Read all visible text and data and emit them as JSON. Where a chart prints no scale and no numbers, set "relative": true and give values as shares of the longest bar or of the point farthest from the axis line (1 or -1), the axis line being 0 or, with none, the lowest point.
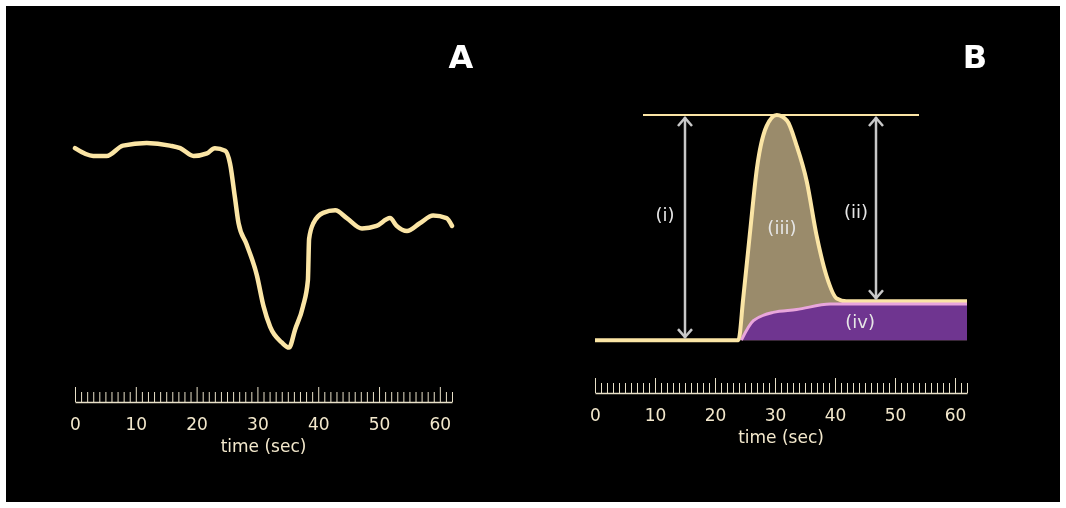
{
  "chart_data": [
    {
      "type": "line",
      "title": "A",
      "xlabel": "time (sec)",
      "relative": true,
      "xlim": [
        0,
        62
      ],
      "xticks": [
        0,
        {
          "value": 1,
          "label": null
        },
        {
          "value": 2,
          "label": null
        },
        {
          "value": 3,
          "label": null
        },
        {
          "value": 4,
          "label": null
        },
        {
          "value": 5,
          "label": null
        },
        {
          "value": 6,
          "label": null
        },
        {
          "value": 7,
          "label": null
        },
        {
          "value": 8,
          "label": null
        },
        {
          "value": 9,
          "label": null
        },
        10,
        {
          "value": 11,
          "label": null
        },
        {
          "value": 12,
          "label": null
        },
        {
          "value": 13,
          "label": null
        },
        {
          "value": 14,
          "label": null
        },
        {
          "value": 15,
          "label": null
        },
        {
          "value": 16,
          "label": null
        },
        {
          "value": 17,
          "label": null
        },
        {
          "value": 18,
          "label": null
        },
        {
          "value": 19,
          "label": null
        },
        20,
        {
          "value": 21,
          "label": null
        },
        {
          "value": 22,
          "label": null
        },
        {
          "value": 23,
          "label": null
        },
        {
          "value": 24,
          "label": null
        },
        {
          "value": 25,
          "label": null
        },
        {
          "value": 26,
          "label": null
        },
        {
          "value": 27,
          "label": null
        },
        {
          "value": 28,
          "label": null
        },
        {
          "value": 29,
          "label": null
        },
        30,
        {
          "value": 31,
          "label": null
        },
        {
          "value": 32,
          "label": null
        },
        {
          "value": 33,
          "label": null
        },
        {
          "value": 34,
          "label": null
        },
        {
          "value": 35,
          "label": null
        },
        {
          "value": 36,
          "label": null
        },
        {
          "value": 37,
          "label": null
        },
        {
          "value": 38,
          "label": null
        },
        {
          "value": 39,
          "label": null
        },
        40,
        {
          "value": 41,
          "label": null
        },
        {
          "value": 42,
          "label": null
        },
        {
          "value": 43,
          "label": null
        },
        {
          "value": 44,
          "label": null
        },
        {
          "value": 45,
          "label": null
        },
        {
          "value": 46,
          "label": null
        },
        {
          "value": 47,
          "label": null
        },
        {
          "value": 48,
          "label": null
        },
        {
          "value": 49,
          "label": null
        },
        50,
        {
          "value": 51,
          "label": null
        },
        {
          "value": 52,
          "label": null
        },
        {
          "value": 53,
          "label": null
        },
        {
          "value": 54,
          "label": null
        },
        {
          "value": 55,
          "label": null
        },
        {
          "value": 56,
          "label": null
        },
        {
          "value": 57,
          "label": null
        },
        {
          "value": 58,
          "label": null
        },
        {
          "value": 59,
          "label": null
        },
        60,
        {
          "value": 61,
          "label": null
        },
        {
          "value": 62,
          "label": null
        }
      ],
      "series": [
        {
          "color": "#fbe5a5",
          "x": [
            0,
            3.0,
            5.2,
            7.9,
            11.8,
            15.6,
            17.3,
            19.5,
            21.7,
            23.0,
            24.7,
            25.5,
            26.3,
            26.9,
            28.2,
            29.9,
            31.0,
            32.1,
            34.0,
            35.2,
            36.2,
            37.5,
            38.3,
            38.5,
            39.2,
            40.8,
            42.8,
            44.7,
            47.2,
            49.6,
            51.8,
            52.9,
            54.6,
            56.7,
            58.9,
            61.1,
            62
          ],
          "values": [
            0.98,
            0.95,
            0.95,
            0.99,
            1.0,
            0.99,
            0.98,
            0.95,
            0.96,
            0.98,
            0.97,
            0.92,
            0.79,
            0.69,
            0.61,
            0.49,
            0.37,
            0.29,
            0.23,
            0.21,
            0.28,
            0.37,
            0.47,
            0.63,
            0.69,
            0.73,
            0.74,
            0.71,
            0.67,
            0.68,
            0.71,
            0.68,
            0.66,
            0.69,
            0.72,
            0.71,
            0.68
          ]
        }
      ]
    },
    {
      "type": "area",
      "title": "B",
      "xlabel": "time (sec)",
      "relative": true,
      "xlim": [
        0,
        62
      ],
      "xticks": [
        0,
        {
          "value": 1,
          "label": null
        },
        {
          "value": 2,
          "label": null
        },
        {
          "value": 3,
          "label": null
        },
        {
          "value": 4,
          "label": null
        },
        {
          "value": 5,
          "label": null
        },
        {
          "value": 6,
          "label": null
        },
        {
          "value": 7,
          "label": null
        },
        {
          "value": 8,
          "label": null
        },
        {
          "value": 9,
          "label": null
        },
        10,
        {
          "value": 11,
          "label": null
        },
        {
          "value": 12,
          "label": null
        },
        {
          "value": 13,
          "label": null
        },
        {
          "value": 14,
          "label": null
        },
        {
          "value": 15,
          "label": null
        },
        {
          "value": 16,
          "label": null
        },
        {
          "value": 17,
          "label": null
        },
        {
          "value": 18,
          "label": null
        },
        {
          "value": 19,
          "label": null
        },
        20,
        {
          "value": 21,
          "label": null
        },
        {
          "value": 22,
          "label": null
        },
        {
          "value": 23,
          "label": null
        },
        {
          "value": 24,
          "label": null
        },
        {
          "value": 25,
          "label": null
        },
        {
          "value": 26,
          "label": null
        },
        {
          "value": 27,
          "label": null
        },
        {
          "value": 28,
          "label": null
        },
        {
          "value": 29,
          "label": null
        },
        30,
        {
          "value": 31,
          "label": null
        },
        {
          "value": 32,
          "label": null
        },
        {
          "value": 33,
          "label": null
        },
        {
          "value": 34,
          "label": null
        },
        {
          "value": 35,
          "label": null
        },
        {
          "value": 36,
          "label": null
        },
        {
          "value": 37,
          "label": null
        },
        {
          "value": 38,
          "label": null
        },
        {
          "value": 39,
          "label": null
        },
        40,
        {
          "value": 41,
          "label": null
        },
        {
          "value": 42,
          "label": null
        },
        {
          "value": 43,
          "label": null
        },
        {
          "value": 44,
          "label": null
        },
        {
          "value": 45,
          "label": null
        },
        {
          "value": 46,
          "label": null
        },
        {
          "value": 47,
          "label": null
        },
        {
          "value": 48,
          "label": null
        },
        {
          "value": 49,
          "label": null
        },
        50,
        {
          "value": 51,
          "label": null
        },
        {
          "value": 52,
          "label": null
        },
        {
          "value": 53,
          "label": null
        },
        {
          "value": 54,
          "label": null
        },
        {
          "value": 55,
          "label": null
        },
        {
          "value": 56,
          "label": null
        },
        {
          "value": 57,
          "label": null
        },
        {
          "value": 58,
          "label": null
        },
        {
          "value": 59,
          "label": null
        },
        60,
        {
          "value": 61,
          "label": null
        },
        {
          "value": 62,
          "label": null
        }
      ],
      "series": [
        {
          "name": "(iii)",
          "color": "#9a8b6b",
          "x": [
            0,
            23.9,
            24.7,
            25.8,
            27.0,
            28.6,
            30.3,
            32.0,
            33.6,
            35.3,
            36.9,
            38.6,
            40.3,
            41.9,
            62
          ],
          "values": [
            0.19,
            0.19,
            0.34,
            0.57,
            0.81,
            0.96,
            1.0,
            0.98,
            0.89,
            0.76,
            0.57,
            0.42,
            0.34,
            0.33,
            0.33
          ]
        },
        {
          "name": "(iv)",
          "color": "#6f3590",
          "x": [
            24.4,
            26.4,
            29.7,
            33.6,
            39.2,
            44.7,
            62
          ],
          "values": [
            0.19,
            0.26,
            0.29,
            0.3,
            0.32,
            0.32,
            0.32
          ]
        }
      ],
      "ref_lines": [
        {
          "axis": "y",
          "value": 1,
          "color": "#fbe5a5"
        }
      ],
      "annotations": [
        "(i)",
        "(ii)"
      ]
    }
  ]
}
